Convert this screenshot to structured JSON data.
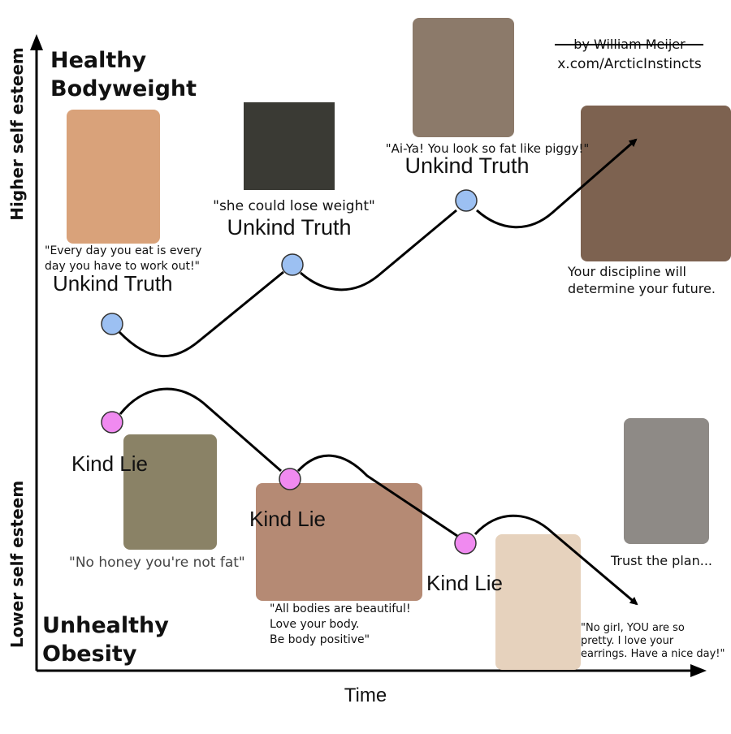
{
  "axes": {
    "y_top": "Higher self esteem",
    "y_bottom": "Lower self esteem",
    "x": "Time"
  },
  "top_label": [
    "Healthy",
    "Bodyweight"
  ],
  "bottom_label": [
    "Unhealthy",
    "Obesity"
  ],
  "credit": {
    "author": "by William Meijer",
    "link": "x.com/ArcticInstincts"
  },
  "upper_path": {
    "steps": [
      {
        "quote": [
          "\"Every day you eat is every",
          "day you have to work out!\""
        ],
        "label": "Unkind Truth"
      },
      {
        "quote": [
          "\"she could lose weight\""
        ],
        "label": "Unkind Truth"
      },
      {
        "quote": [
          "\"Ai-Ya! You look so fat like piggy!\""
        ],
        "label": "Unkind Truth"
      }
    ],
    "outcome": [
      "Your discipline will",
      "determine your future."
    ]
  },
  "lower_path": {
    "steps": [
      {
        "label": "Kind Lie",
        "quote": [
          "\"No honey you're not fat\""
        ]
      },
      {
        "label": "Kind Lie",
        "quote": [
          "\"All bodies are beautiful!",
          "Love your body.",
          "Be body positive\""
        ]
      },
      {
        "label": "Kind Lie",
        "quote": [
          "\"No girl, YOU are so",
          "pretty. I love your",
          "earrings. Have a nice day!\""
        ]
      }
    ],
    "outcome": [
      "Trust the plan..."
    ]
  }
}
